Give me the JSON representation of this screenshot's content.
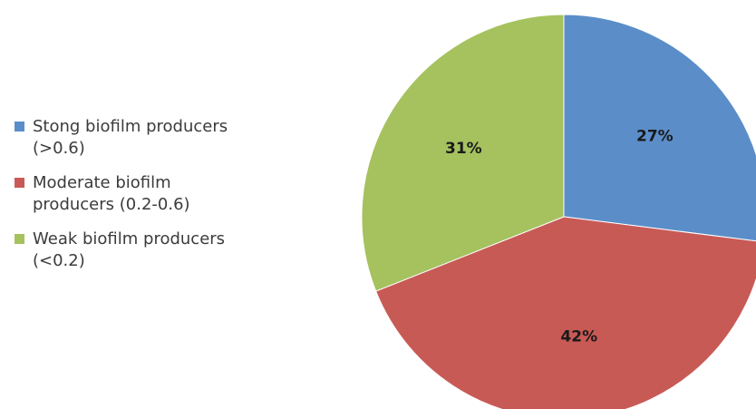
{
  "chart_data": {
    "type": "pie",
    "title": "",
    "categories": [
      "Stong biofilm producers\n(>0.6)",
      "Moderate biofilm\nproducers (0.2-0.6)",
      "Weak biofilm producers\n(<0.2)"
    ],
    "values": [
      27,
      42,
      31
    ],
    "labels": [
      "27%",
      "42%",
      "31%"
    ],
    "colors": [
      "#5b8ec9",
      "#c85a56",
      "#a5c25f"
    ],
    "start_angle_degrees": 0,
    "direction": "clockwise",
    "legend_position": "left"
  }
}
